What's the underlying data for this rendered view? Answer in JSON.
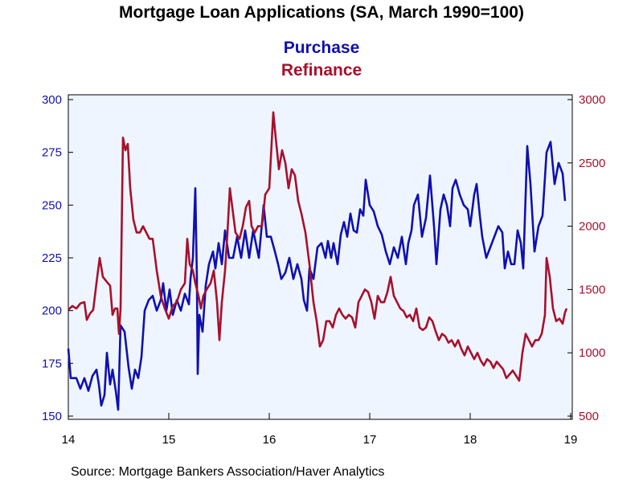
{
  "chart_data": {
    "type": "line",
    "title": "Mortgage Loan Applications (SA, March 1990=100)",
    "source": "Source:  Mortgage Bankers Association/Haver Analytics",
    "xlim": [
      14,
      19
    ],
    "xticks": [
      14,
      15,
      16,
      17,
      18,
      19
    ],
    "ylim": [
      150,
      300
    ],
    "yticks": [
      150,
      175,
      200,
      225,
      250,
      275,
      300
    ],
    "y2lim": [
      500,
      3000
    ],
    "y2ticks": [
      500,
      1000,
      1500,
      2000,
      2500,
      3000
    ],
    "series": [
      {
        "name": "Purchase",
        "color": "#1010b0",
        "axis": "y",
        "x": [
          14,
          14.024,
          14.08,
          14.12,
          14.16,
          14.2,
          14.24,
          14.28,
          14.304,
          14.328,
          14.36,
          14.384,
          14.416,
          14.44,
          14.472,
          14.496,
          14.52,
          14.56,
          14.6,
          14.632,
          14.664,
          14.696,
          14.728,
          14.76,
          14.8,
          14.84,
          14.88,
          14.92,
          14.944,
          14.976,
          15.008,
          15.04,
          15.08,
          15.12,
          15.16,
          15.2,
          15.216,
          15.24,
          15.264,
          15.28,
          15.288,
          15.304,
          15.336,
          15.368,
          15.4,
          15.44,
          15.464,
          15.496,
          15.528,
          15.56,
          15.6,
          15.64,
          15.68,
          15.72,
          15.76,
          15.8,
          15.84,
          15.896,
          15.944,
          15.976,
          16.016,
          16.056,
          16.088,
          16.12,
          16.16,
          16.2,
          16.24,
          16.28,
          16.32,
          16.344,
          16.376,
          16.4,
          16.44,
          16.48,
          16.52,
          16.56,
          16.584,
          16.616,
          16.64,
          16.68,
          16.712,
          16.744,
          16.776,
          16.808,
          16.84,
          16.872,
          16.904,
          16.936,
          16.96,
          17.0,
          17.04,
          17.08,
          17.12,
          17.16,
          17.2,
          17.24,
          17.28,
          17.32,
          17.36,
          17.384,
          17.416,
          17.44,
          17.48,
          17.52,
          17.56,
          17.6,
          17.64,
          17.664,
          17.704,
          17.736,
          17.768,
          17.8,
          17.824,
          17.856,
          17.896,
          17.936,
          17.976,
          18.0,
          18.04,
          18.064,
          18.096,
          18.12,
          18.16,
          18.2,
          18.24,
          18.28,
          18.32,
          18.344,
          18.376,
          18.408,
          18.44,
          18.472,
          18.504,
          18.528,
          18.568,
          18.6,
          18.64,
          18.68,
          18.72,
          18.76,
          18.8,
          18.84,
          18.88,
          18.92,
          18.944
        ],
        "values": [
          182,
          168,
          168,
          163,
          168,
          162,
          169,
          172,
          165,
          155,
          160,
          180,
          165,
          172,
          162,
          153,
          193,
          190,
          173,
          163,
          172,
          168,
          178,
          200,
          205,
          207,
          200,
          205,
          213,
          200,
          210,
          198,
          205,
          200,
          208,
          203,
          215,
          225,
          258,
          215,
          170,
          198,
          190,
          212,
          222,
          228,
          220,
          232,
          222,
          238,
          225,
          225,
          235,
          225,
          238,
          225,
          238,
          225,
          250,
          235,
          235,
          228,
          222,
          215,
          218,
          225,
          215,
          222,
          215,
          205,
          200,
          220,
          215,
          230,
          232,
          225,
          233,
          225,
          232,
          222,
          236,
          242,
          235,
          246,
          238,
          237,
          248,
          245,
          262,
          250,
          247,
          240,
          236,
          228,
          222,
          230,
          225,
          235,
          222,
          232,
          238,
          250,
          255,
          235,
          244,
          264,
          240,
          222,
          248,
          255,
          250,
          240,
          258,
          262,
          255,
          250,
          248,
          240,
          255,
          260,
          245,
          235,
          225,
          230,
          235,
          240,
          237,
          220,
          228,
          222,
          222,
          238,
          232,
          220,
          278,
          260,
          228,
          240,
          245,
          275,
          280,
          260,
          270,
          265,
          252
        ]
      },
      {
        "name": "Refinance",
        "color": "#a8102c",
        "axis": "y2",
        "x": [
          14,
          14.04,
          14.08,
          14.12,
          14.16,
          14.184,
          14.216,
          14.248,
          14.28,
          14.312,
          14.344,
          14.384,
          14.416,
          14.44,
          14.464,
          14.488,
          14.504,
          14.52,
          14.544,
          14.568,
          14.592,
          14.616,
          14.648,
          14.68,
          14.712,
          14.744,
          14.776,
          14.808,
          14.84,
          14.88,
          14.92,
          14.96,
          15.0,
          15.04,
          15.08,
          15.12,
          15.16,
          15.184,
          15.208,
          15.24,
          15.264,
          15.296,
          15.32,
          15.344,
          15.376,
          15.416,
          15.448,
          15.48,
          15.504,
          15.528,
          15.56,
          15.584,
          15.608,
          15.64,
          15.664,
          15.704,
          15.736,
          15.768,
          15.8,
          15.824,
          15.856,
          15.888,
          15.928,
          15.96,
          16.0,
          16.04,
          16.064,
          16.096,
          16.128,
          16.16,
          16.192,
          16.224,
          16.256,
          16.288,
          16.32,
          16.36,
          16.4,
          16.44,
          16.472,
          16.504,
          16.536,
          16.568,
          16.6,
          16.632,
          16.664,
          16.696,
          16.728,
          16.76,
          16.792,
          16.824,
          16.856,
          16.888,
          16.92,
          16.952,
          16.984,
          17.016,
          17.048,
          17.08,
          17.112,
          17.144,
          17.176,
          17.208,
          17.24,
          17.272,
          17.304,
          17.336,
          17.368,
          17.4,
          17.432,
          17.464,
          17.496,
          17.528,
          17.56,
          17.592,
          17.624,
          17.656,
          17.688,
          17.72,
          17.752,
          17.784,
          17.816,
          17.848,
          17.88,
          17.912,
          17.944,
          17.976,
          18.008,
          18.04,
          18.072,
          18.104,
          18.136,
          18.168,
          18.2,
          18.232,
          18.264,
          18.296,
          18.328,
          18.36,
          18.392,
          18.424,
          18.456,
          18.488,
          18.52,
          18.552,
          18.584,
          18.616,
          18.648,
          18.68,
          18.712,
          18.744,
          18.76,
          18.792,
          18.824,
          18.856,
          18.888,
          18.92,
          18.944,
          18.96
        ],
        "values": [
          1340,
          1370,
          1350,
          1390,
          1400,
          1260,
          1310,
          1340,
          1550,
          1750,
          1600,
          1560,
          1530,
          1300,
          1350,
          1350,
          1150,
          1350,
          2700,
          2600,
          2650,
          2300,
          2050,
          1950,
          1950,
          2000,
          1950,
          1900,
          1900,
          1650,
          1450,
          1350,
          1270,
          1370,
          1400,
          1500,
          1550,
          1900,
          1700,
          1650,
          1550,
          1450,
          1350,
          1450,
          1500,
          1550,
          1650,
          1400,
          1100,
          1400,
          1650,
          1950,
          2300,
          2100,
          1950,
          1900,
          2000,
          2150,
          2200,
          2000,
          1950,
          2000,
          2000,
          2250,
          2300,
          2900,
          2700,
          2450,
          2600,
          2500,
          2300,
          2450,
          2400,
          2200,
          2100,
          1950,
          1700,
          1400,
          1250,
          1050,
          1100,
          1250,
          1250,
          1200,
          1300,
          1350,
          1300,
          1270,
          1300,
          1280,
          1200,
          1400,
          1450,
          1500,
          1480,
          1400,
          1270,
          1450,
          1400,
          1400,
          1480,
          1600,
          1450,
          1400,
          1350,
          1330,
          1280,
          1300,
          1250,
          1350,
          1200,
          1180,
          1200,
          1280,
          1250,
          1170,
          1100,
          1150,
          1130,
          1080,
          1100,
          1050,
          1100,
          1030,
          980,
          1050,
          1000,
          950,
          1000,
          940,
          900,
          950,
          930,
          880,
          930,
          900,
          870,
          800,
          830,
          860,
          820,
          780,
          1000,
          1150,
          1100,
          1050,
          1100,
          1100,
          1150,
          1300,
          1750,
          1600,
          1350,
          1250,
          1270,
          1230,
          1320,
          1350
        ]
      }
    ]
  }
}
